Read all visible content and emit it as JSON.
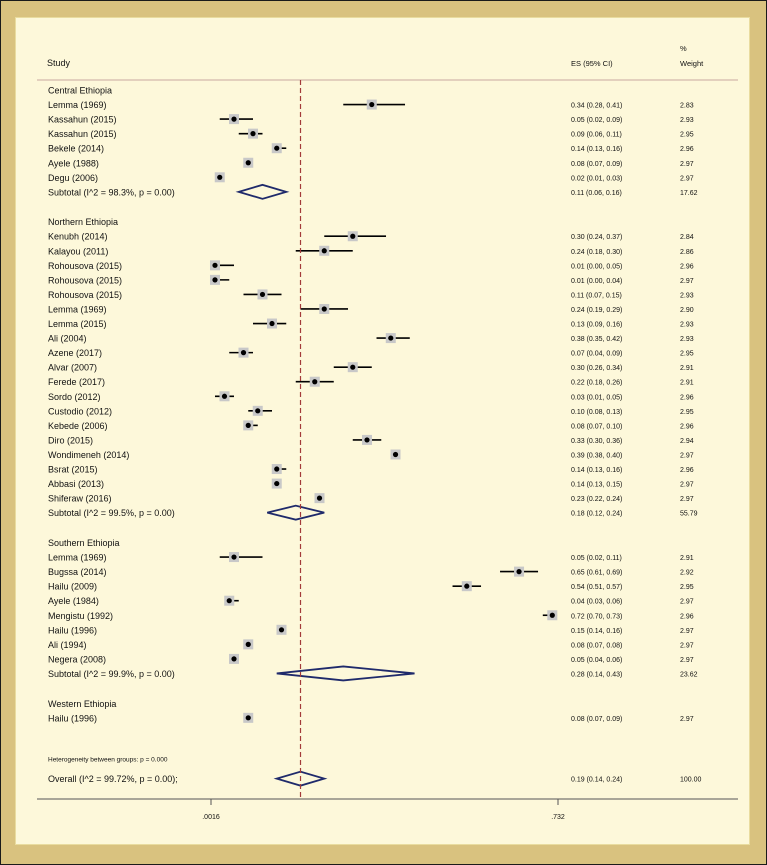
{
  "chart_data": {
    "type": "forest",
    "header": {
      "study": "Study",
      "es": "ES (95% CI)",
      "weight_line1": "%",
      "weight_line2": "Weight"
    },
    "x_ticks": [
      {
        "value": 0.0016,
        "label": ".0016"
      },
      {
        "value": 0.732,
        "label": ".732"
      }
    ],
    "null_line": 0.19,
    "groups": [
      {
        "name": "Central Ethiopia",
        "studies": [
          {
            "label": "Lemma (1969)",
            "es": 0.34,
            "lo": 0.28,
            "hi": 0.41,
            "es_text": "0.34 (0.28, 0.41)",
            "weight": "2.83"
          },
          {
            "label": "Kassahun (2015)",
            "es": 0.05,
            "lo": 0.02,
            "hi": 0.09,
            "es_text": "0.05 (0.02, 0.09)",
            "weight": "2.93"
          },
          {
            "label": "Kassahun (2015)",
            "es": 0.09,
            "lo": 0.06,
            "hi": 0.11,
            "es_text": "0.09 (0.06, 0.11)",
            "weight": "2.95"
          },
          {
            "label": "Bekele (2014)",
            "es": 0.14,
            "lo": 0.13,
            "hi": 0.16,
            "es_text": "0.14 (0.13, 0.16)",
            "weight": "2.96"
          },
          {
            "label": "Ayele (1988)",
            "es": 0.08,
            "lo": 0.07,
            "hi": 0.09,
            "es_text": "0.08 (0.07, 0.09)",
            "weight": "2.97"
          },
          {
            "label": "Degu (2006)",
            "es": 0.02,
            "lo": 0.01,
            "hi": 0.03,
            "es_text": "0.02 (0.01, 0.03)",
            "weight": "2.97"
          }
        ],
        "subtotal": {
          "label": "Subtotal  (I^2 = 98.3%, p = 0.00)",
          "es": 0.11,
          "lo": 0.06,
          "hi": 0.16,
          "es_text": "0.11 (0.06, 0.16)",
          "weight": "17.62"
        }
      },
      {
        "name": "Northern Ethiopia",
        "studies": [
          {
            "label": "Kenubh (2014)",
            "es": 0.3,
            "lo": 0.24,
            "hi": 0.37,
            "es_text": "0.30 (0.24, 0.37)",
            "weight": "2.84"
          },
          {
            "label": "Kalayou (2011)",
            "es": 0.24,
            "lo": 0.18,
            "hi": 0.3,
            "es_text": "0.24 (0.18, 0.30)",
            "weight": "2.86"
          },
          {
            "label": "Rohousova (2015)",
            "es": 0.01,
            "lo": 0.0,
            "hi": 0.05,
            "es_text": "0.01 (0.00, 0.05)",
            "weight": "2.96"
          },
          {
            "label": "Rohousova (2015)",
            "es": 0.01,
            "lo": 0.0,
            "hi": 0.04,
            "es_text": "0.01 (0.00, 0.04)",
            "weight": "2.97"
          },
          {
            "label": "Rohousova (2015)",
            "es": 0.11,
            "lo": 0.07,
            "hi": 0.15,
            "es_text": "0.11 (0.07, 0.15)",
            "weight": "2.93"
          },
          {
            "label": "Lemma (1969)",
            "es": 0.24,
            "lo": 0.19,
            "hi": 0.29,
            "es_text": "0.24 (0.19, 0.29)",
            "weight": "2.90"
          },
          {
            "label": "Lemma (2015)",
            "es": 0.13,
            "lo": 0.09,
            "hi": 0.16,
            "es_text": "0.13 (0.09, 0.16)",
            "weight": "2.93"
          },
          {
            "label": "Ali (2004)",
            "es": 0.38,
            "lo": 0.35,
            "hi": 0.42,
            "es_text": "0.38 (0.35, 0.42)",
            "weight": "2.93"
          },
          {
            "label": "Azene (2017)",
            "es": 0.07,
            "lo": 0.04,
            "hi": 0.09,
            "es_text": "0.07 (0.04, 0.09)",
            "weight": "2.95"
          },
          {
            "label": "Alvar (2007)",
            "es": 0.3,
            "lo": 0.26,
            "hi": 0.34,
            "es_text": "0.30 (0.26, 0.34)",
            "weight": "2.91"
          },
          {
            "label": "Ferede (2017)",
            "es": 0.22,
            "lo": 0.18,
            "hi": 0.26,
            "es_text": "0.22 (0.18, 0.26)",
            "weight": "2.91"
          },
          {
            "label": "Sordo (2012)",
            "es": 0.03,
            "lo": 0.01,
            "hi": 0.05,
            "es_text": "0.03 (0.01, 0.05)",
            "weight": "2.96"
          },
          {
            "label": "Custodio (2012)",
            "es": 0.1,
            "lo": 0.08,
            "hi": 0.13,
            "es_text": "0.10 (0.08, 0.13)",
            "weight": "2.95"
          },
          {
            "label": "Kebede (2006)",
            "es": 0.08,
            "lo": 0.07,
            "hi": 0.1,
            "es_text": "0.08 (0.07, 0.10)",
            "weight": "2.96"
          },
          {
            "label": "Diro (2015)",
            "es": 0.33,
            "lo": 0.3,
            "hi": 0.36,
            "es_text": "0.33 (0.30, 0.36)",
            "weight": "2.94"
          },
          {
            "label": "Wondimeneh (2014)",
            "es": 0.39,
            "lo": 0.38,
            "hi": 0.4,
            "es_text": "0.39 (0.38, 0.40)",
            "weight": "2.97"
          },
          {
            "label": "Bsrat (2015)",
            "es": 0.14,
            "lo": 0.13,
            "hi": 0.16,
            "es_text": "0.14 (0.13, 0.16)",
            "weight": "2.96"
          },
          {
            "label": "Abbasi (2013)",
            "es": 0.14,
            "lo": 0.13,
            "hi": 0.15,
            "es_text": "0.14 (0.13, 0.15)",
            "weight": "2.97"
          },
          {
            "label": "Shiferaw (2016)",
            "es": 0.23,
            "lo": 0.22,
            "hi": 0.24,
            "es_text": "0.23 (0.22, 0.24)",
            "weight": "2.97"
          }
        ],
        "subtotal": {
          "label": "Subtotal  (I^2 = 99.5%, p = 0.00)",
          "es": 0.18,
          "lo": 0.12,
          "hi": 0.24,
          "es_text": "0.18 (0.12, 0.24)",
          "weight": "55.79"
        }
      },
      {
        "name": "Southern Ethiopia",
        "studies": [
          {
            "label": "Lemma (1969)",
            "es": 0.05,
            "lo": 0.02,
            "hi": 0.11,
            "es_text": "0.05 (0.02, 0.11)",
            "weight": "2.91"
          },
          {
            "label": "Bugssa (2014)",
            "es": 0.65,
            "lo": 0.61,
            "hi": 0.69,
            "es_text": "0.65 (0.61, 0.69)",
            "weight": "2.92"
          },
          {
            "label": "Hailu (2009)",
            "es": 0.54,
            "lo": 0.51,
            "hi": 0.57,
            "es_text": "0.54 (0.51, 0.57)",
            "weight": "2.95"
          },
          {
            "label": "Ayele (1984)",
            "es": 0.04,
            "lo": 0.03,
            "hi": 0.06,
            "es_text": "0.04 (0.03, 0.06)",
            "weight": "2.97"
          },
          {
            "label": "Mengistu (1992)",
            "es": 0.72,
            "lo": 0.7,
            "hi": 0.73,
            "es_text": "0.72 (0.70, 0.73)",
            "weight": "2.96"
          },
          {
            "label": "Hailu (1996)",
            "es": 0.15,
            "lo": 0.14,
            "hi": 0.16,
            "es_text": "0.15 (0.14, 0.16)",
            "weight": "2.97"
          },
          {
            "label": "Ali (1994)",
            "es": 0.08,
            "lo": 0.07,
            "hi": 0.08,
            "es_text": "0.08 (0.07, 0.08)",
            "weight": "2.97"
          },
          {
            "label": "Negera (2008)",
            "es": 0.05,
            "lo": 0.04,
            "hi": 0.06,
            "es_text": "0.05 (0.04, 0.06)",
            "weight": "2.97"
          }
        ],
        "subtotal": {
          "label": "Subtotal  (I^2 = 99.9%, p = 0.00)",
          "es": 0.28,
          "lo": 0.14,
          "hi": 0.43,
          "es_text": "0.28 (0.14, 0.43)",
          "weight": "23.62"
        }
      },
      {
        "name": "Western Ethiopia",
        "studies": [
          {
            "label": "Hailu (1996)",
            "es": 0.08,
            "lo": 0.07,
            "hi": 0.09,
            "es_text": "0.08 (0.07, 0.09)",
            "weight": "2.97"
          }
        ],
        "subtotal": null
      }
    ],
    "heterogeneity_note": "Heterogeneity between groups: p = 0.000",
    "overall": {
      "label": "Overall  (I^2 = 99.72%, p = 0.00);",
      "es": 0.19,
      "lo": 0.14,
      "hi": 0.24,
      "es_text": "0.19 (0.14, 0.24)",
      "weight": "100.00"
    },
    "colors": {
      "frame": "#d9c27f",
      "panel": "#fdf8da",
      "diamond": "#1f2a6b",
      "null_line": "#a33a3a",
      "text": "#111111"
    }
  }
}
